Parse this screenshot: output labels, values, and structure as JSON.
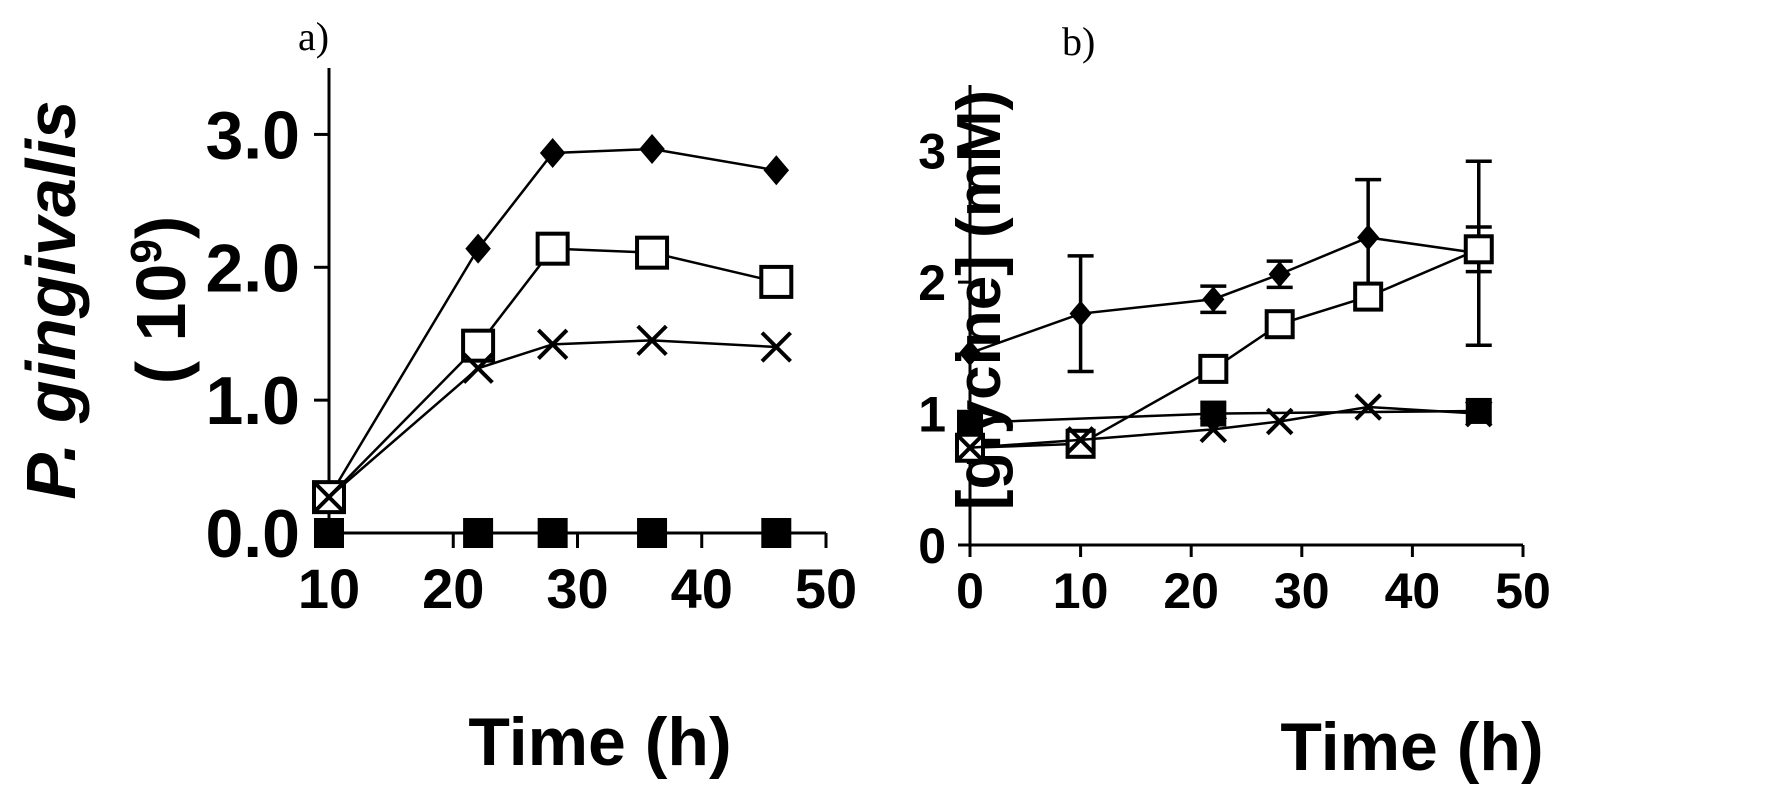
{
  "chart_data": [
    {
      "type": "line",
      "panel_label": "a)",
      "title": "",
      "xlabel": "Time (h)",
      "ylabel_parts": {
        "italic": "P. gingivalis",
        "open": "( 10",
        "sup": "9",
        "close": ")"
      },
      "xlim": [
        10,
        50
      ],
      "ylim": [
        0,
        3.5
      ],
      "x_ticks": [
        10,
        20,
        30,
        40,
        50
      ],
      "y_ticks": [
        0,
        1,
        2,
        3
      ],
      "y_tick_labels": [
        "0.0",
        "1.0",
        "2.0",
        "3.0"
      ],
      "grid": false,
      "legend": "none",
      "series": [
        {
          "marker": "diamond",
          "x": [
            10,
            22,
            28,
            36,
            46
          ],
          "y": [
            0.27,
            2.14,
            2.86,
            2.89,
            2.73
          ]
        },
        {
          "marker": "open-square",
          "x": [
            10,
            22,
            28,
            36,
            46
          ],
          "y": [
            0.27,
            1.41,
            2.14,
            2.11,
            1.89
          ]
        },
        {
          "marker": "cross",
          "x": [
            10,
            22,
            28,
            36,
            46
          ],
          "y": [
            0.27,
            1.24,
            1.42,
            1.45,
            1.4
          ]
        },
        {
          "marker": "filled-square",
          "x": [
            10,
            22,
            28,
            36,
            46
          ],
          "y": [
            0.0,
            0.0,
            0.0,
            0.0,
            0.0
          ]
        }
      ]
    },
    {
      "type": "line",
      "panel_label": "b)",
      "title": "",
      "xlabel": "Time (h)",
      "ylabel": "[glycine] (mM)",
      "xlim": [
        0,
        50
      ],
      "ylim": [
        0,
        3.5
      ],
      "x_ticks": [
        0,
        10,
        20,
        30,
        40,
        50
      ],
      "y_ticks": [
        0,
        1,
        2,
        3
      ],
      "y_tick_labels": [
        "0",
        "1",
        "2",
        "3"
      ],
      "grid": false,
      "legend": "none",
      "series": [
        {
          "marker": "diamond",
          "x": [
            0,
            10,
            22,
            28,
            36,
            46
          ],
          "y": [
            1.46,
            1.76,
            1.87,
            2.06,
            2.34,
            2.22
          ],
          "err": [
            0,
            0.44,
            0.1,
            0.1,
            0.44,
            0.7
          ]
        },
        {
          "marker": "open-square",
          "x": [
            0,
            10,
            22,
            28,
            36,
            46
          ],
          "y": [
            0.74,
            0.77,
            1.34,
            1.68,
            1.89,
            2.25
          ],
          "err": [
            0,
            0,
            0,
            0,
            0,
            0.17
          ]
        },
        {
          "marker": "cross",
          "x": [
            0,
            10,
            22,
            28,
            36,
            46
          ],
          "y": [
            0.74,
            0.8,
            0.88,
            0.94,
            1.05,
            1.0
          ]
        },
        {
          "marker": "filled-square",
          "x": [
            0,
            22,
            46
          ],
          "y": [
            0.93,
            1.0,
            1.02
          ]
        }
      ]
    }
  ]
}
